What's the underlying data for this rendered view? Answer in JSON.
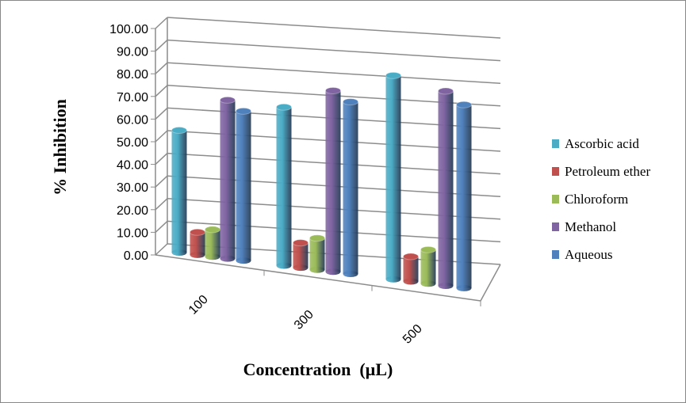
{
  "chart_data": {
    "type": "bar",
    "style": "3d-cylinder",
    "title": "",
    "xlabel": "Concentration  (µL)",
    "ylabel": "% Inhibition",
    "ylim": [
      0,
      100
    ],
    "yticks": [
      "0.00",
      "10.00",
      "20.00",
      "30.00",
      "40.00",
      "50.00",
      "60.00",
      "70.00",
      "80.00",
      "90.00",
      "100.00"
    ],
    "categories": [
      "100",
      "300",
      "500"
    ],
    "grid": true,
    "legend_position": "right",
    "series": [
      {
        "name": "Ascorbic acid",
        "color": "#4bacc6",
        "values": [
          54,
          70,
          90
        ]
      },
      {
        "name": "Petroleum ether",
        "color": "#c0504d",
        "values": [
          10,
          11,
          11
        ]
      },
      {
        "name": "Chloroform",
        "color": "#9bbb59",
        "values": [
          12,
          14,
          15
        ]
      },
      {
        "name": "Methanol",
        "color": "#8064a2",
        "values": [
          70,
          80,
          86
        ]
      },
      {
        "name": "Aqueous",
        "color": "#4f81bd",
        "values": [
          66,
          76,
          81
        ]
      }
    ]
  }
}
